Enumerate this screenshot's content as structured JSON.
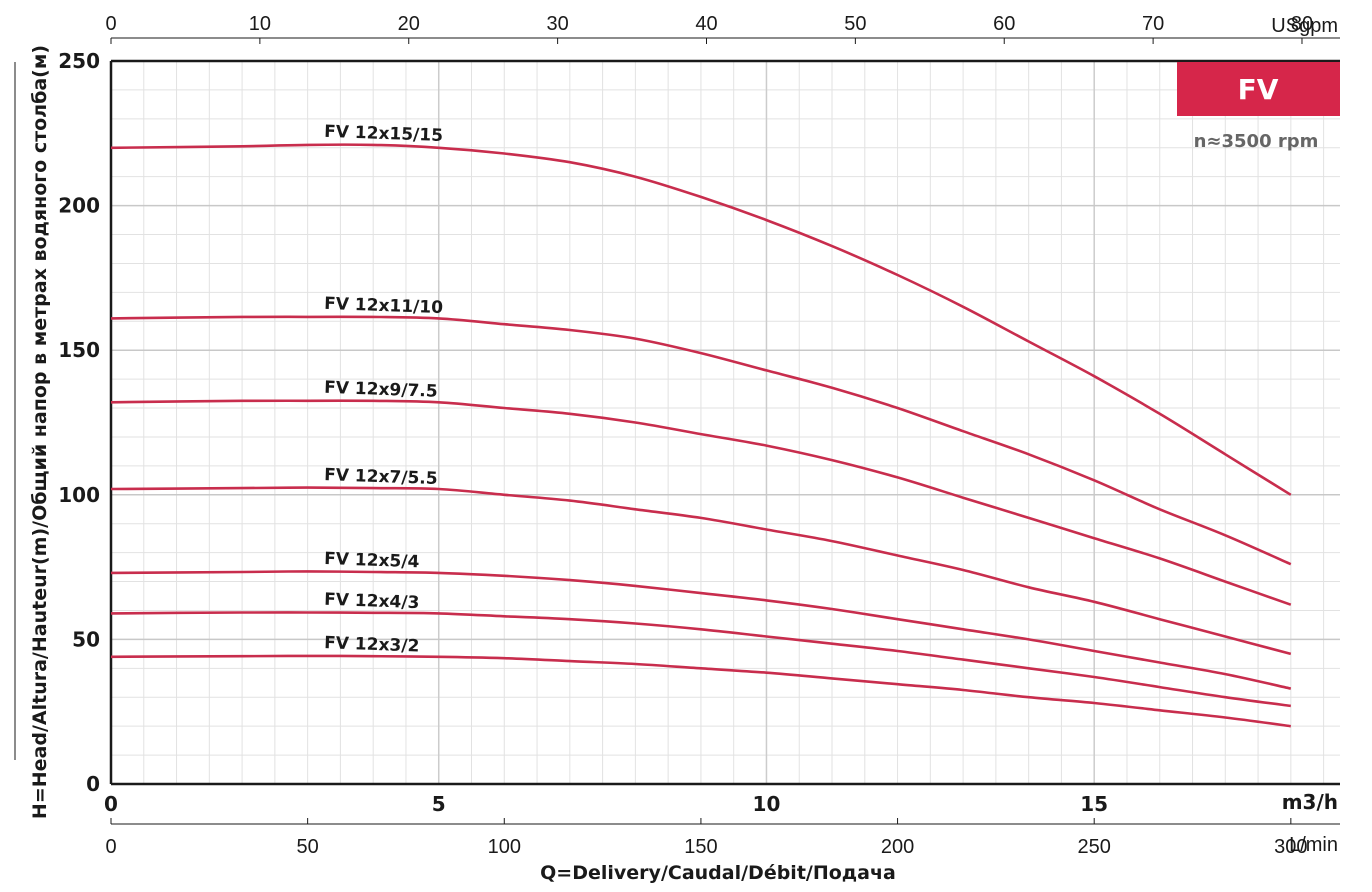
{
  "chart_data": {
    "type": "line",
    "title": "",
    "x_unit_top": "USgpm",
    "x_unit_main": "m3/h",
    "x_unit_bottom": "L/min",
    "xlabel": "Q=Delivery/Caudal/Débit/Подача",
    "ylabel": "H=Head/Altura/Hauteur(m)/Общий напор в метрах водяного столба(м)",
    "xlim": [
      0,
      18.75
    ],
    "ylim": [
      0,
      250
    ],
    "x_ticks_top": [
      "0",
      "10",
      "20",
      "30",
      "40",
      "50",
      "60",
      "70",
      "80"
    ],
    "x_ticks_main": [
      "0",
      "5",
      "10",
      "15"
    ],
    "x_ticks_bottom": [
      "0",
      "50",
      "100",
      "150",
      "200",
      "250",
      "300"
    ],
    "y_ticks": [
      "0",
      "50",
      "100",
      "150",
      "200",
      "250"
    ],
    "grid": true,
    "line_color": "#c82d4d",
    "badge": {
      "label": "FV",
      "color": "#d6264a"
    },
    "speed_note": "n≈3500 rpm",
    "series": [
      {
        "name": "FV 12x15/15",
        "x": [
          0,
          2,
          3,
          4,
          5,
          6,
          7,
          8,
          9,
          10,
          11,
          12,
          13,
          14,
          15,
          16,
          17,
          18
        ],
        "y": [
          220,
          220.5,
          221,
          221,
          220,
          218,
          215,
          210,
          203,
          195,
          186,
          176,
          165,
          153,
          141,
          128,
          114,
          100
        ]
      },
      {
        "name": "FV 12x11/10",
        "x": [
          0,
          2,
          3,
          4,
          5,
          6,
          7,
          8,
          9,
          10,
          11,
          12,
          13,
          14,
          15,
          16,
          17,
          18
        ],
        "y": [
          161,
          161.5,
          161.5,
          161.5,
          161,
          159,
          157,
          154,
          149,
          143,
          137,
          130,
          122,
          114,
          105,
          95,
          86,
          76
        ]
      },
      {
        "name": "FV 12x9/7.5",
        "x": [
          0,
          2,
          3,
          4,
          5,
          6,
          7,
          8,
          9,
          10,
          11,
          12,
          13,
          14,
          15,
          16,
          17,
          18
        ],
        "y": [
          132,
          132.5,
          132.5,
          132.5,
          132,
          130,
          128,
          125,
          121,
          117,
          112,
          106,
          99,
          92,
          85,
          78,
          70,
          62
        ]
      },
      {
        "name": "FV 12x7/5.5",
        "x": [
          0,
          2,
          3,
          4,
          5,
          6,
          7,
          8,
          9,
          10,
          11,
          12,
          13,
          14,
          15,
          16,
          17,
          18
        ],
        "y": [
          102,
          102.3,
          102.5,
          102.3,
          102,
          100,
          98,
          95,
          92,
          88,
          84,
          79,
          74,
          68,
          63,
          57,
          51,
          45
        ]
      },
      {
        "name": "FV 12x5/4",
        "x": [
          0,
          2,
          3,
          4,
          5,
          6,
          7,
          8,
          9,
          10,
          11,
          12,
          13,
          14,
          15,
          16,
          17,
          18
        ],
        "y": [
          73,
          73.3,
          73.5,
          73.3,
          73,
          72,
          70.5,
          68.5,
          66,
          63.5,
          60.5,
          57,
          53.5,
          50,
          46,
          42,
          38,
          33
        ]
      },
      {
        "name": "FV 12x4/3",
        "x": [
          0,
          2,
          3,
          4,
          5,
          6,
          7,
          8,
          9,
          10,
          11,
          12,
          13,
          14,
          15,
          16,
          17,
          18
        ],
        "y": [
          59,
          59.3,
          59.3,
          59.2,
          59,
          58,
          57,
          55.5,
          53.5,
          51,
          48.5,
          46,
          43,
          40,
          37,
          33.5,
          30,
          27
        ]
      },
      {
        "name": "FV 12x3/2",
        "x": [
          0,
          2,
          3,
          4,
          5,
          6,
          7,
          8,
          9,
          10,
          11,
          12,
          13,
          14,
          15,
          16,
          17,
          18
        ],
        "y": [
          44,
          44.2,
          44.3,
          44.2,
          44,
          43.5,
          42.5,
          41.5,
          40,
          38.5,
          36.5,
          34.5,
          32.5,
          30,
          28,
          25.5,
          23,
          20
        ]
      }
    ]
  }
}
